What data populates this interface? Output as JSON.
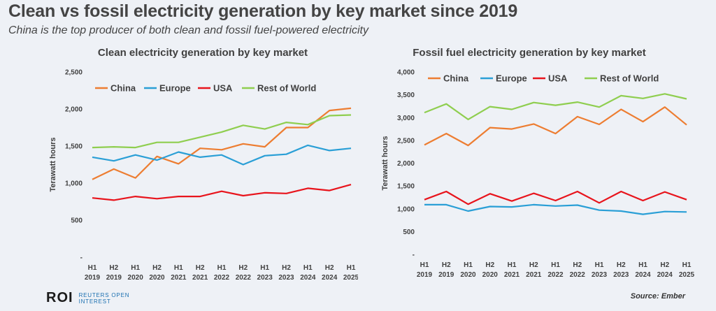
{
  "header": {
    "title": "Clean vs fossil electricity generation by key market since 2019",
    "subtitle": "China is the top producer of both clean and fossil fuel-powered electricity"
  },
  "footer": {
    "logo": "ROI",
    "logo_line1": "REUTERS OPEN",
    "logo_line2": "INTEREST",
    "source": "Source: Ember"
  },
  "chart_data": [
    {
      "type": "line",
      "title": "Clean electricity generation by key market",
      "ylabel": "Terawatt hours",
      "xlabel": "",
      "ylim": [
        0,
        2500
      ],
      "yticks": [
        0,
        500,
        1000,
        1500,
        2000,
        2500
      ],
      "ytick_labels": [
        "-",
        "500",
        "1,000",
        "1,500",
        "2,000",
        "2,500"
      ],
      "categories": [
        [
          "H1",
          "2019"
        ],
        [
          "H2",
          "2019"
        ],
        [
          "H1",
          "2020"
        ],
        [
          "H2",
          "2020"
        ],
        [
          "H1",
          "2021"
        ],
        [
          "H2",
          "2021"
        ],
        [
          "H1",
          "2022"
        ],
        [
          "H2",
          "2022"
        ],
        [
          "H1",
          "2023"
        ],
        [
          "H2",
          "2023"
        ],
        [
          "H1",
          "2024"
        ],
        [
          "H2",
          "2024"
        ],
        [
          "H1",
          "2025"
        ]
      ],
      "series": [
        {
          "name": "China",
          "color": "#ed7d31",
          "values": [
            1050,
            1190,
            1070,
            1360,
            1260,
            1470,
            1450,
            1530,
            1490,
            1750,
            1750,
            1980,
            2010
          ]
        },
        {
          "name": "Europe",
          "color": "#2a9fd6",
          "values": [
            1350,
            1300,
            1380,
            1310,
            1420,
            1350,
            1380,
            1250,
            1370,
            1390,
            1510,
            1440,
            1470
          ]
        },
        {
          "name": "USA",
          "color": "#e8141c",
          "values": [
            800,
            770,
            820,
            790,
            820,
            820,
            890,
            830,
            870,
            860,
            930,
            900,
            980
          ]
        },
        {
          "name": "Rest of World",
          "color": "#8fce4f",
          "values": [
            1480,
            1490,
            1480,
            1550,
            1550,
            1620,
            1690,
            1780,
            1730,
            1820,
            1790,
            1910,
            1920
          ]
        }
      ],
      "legend": "top-left",
      "grid": false
    },
    {
      "type": "line",
      "title": "Fossil fuel electricity generation by key market",
      "ylabel": "Terawatt hours",
      "xlabel": "",
      "ylim": [
        0,
        4000
      ],
      "yticks": [
        0,
        500,
        1000,
        1500,
        2000,
        2500,
        3000,
        3500,
        4000
      ],
      "ytick_labels": [
        "-",
        "500",
        "1,000",
        "1,500",
        "2,000",
        "2,500",
        "3,000",
        "3,500",
        "4,000"
      ],
      "categories": [
        [
          "H1",
          "2019"
        ],
        [
          "H2",
          "2019"
        ],
        [
          "H1",
          "2020"
        ],
        [
          "H2",
          "2020"
        ],
        [
          "H1",
          "2021"
        ],
        [
          "H2",
          "2021"
        ],
        [
          "H1",
          "2022"
        ],
        [
          "H2",
          "2022"
        ],
        [
          "H1",
          "2023"
        ],
        [
          "H2",
          "2023"
        ],
        [
          "H1",
          "2024"
        ],
        [
          "H2",
          "2024"
        ],
        [
          "H1",
          "2025"
        ]
      ],
      "series": [
        {
          "name": "China",
          "color": "#ed7d31",
          "values": [
            2400,
            2650,
            2390,
            2780,
            2750,
            2860,
            2650,
            3020,
            2850,
            3180,
            2910,
            3230,
            2840
          ]
        },
        {
          "name": "Europe",
          "color": "#2a9fd6",
          "values": [
            1090,
            1090,
            950,
            1050,
            1040,
            1090,
            1060,
            1080,
            970,
            950,
            880,
            940,
            930
          ]
        },
        {
          "name": "USA",
          "color": "#e8141c",
          "values": [
            1200,
            1380,
            1100,
            1330,
            1170,
            1340,
            1180,
            1380,
            1130,
            1380,
            1180,
            1370,
            1200
          ]
        },
        {
          "name": "Rest of World",
          "color": "#8fce4f",
          "values": [
            3110,
            3300,
            2960,
            3240,
            3180,
            3330,
            3270,
            3340,
            3230,
            3480,
            3420,
            3520,
            3410
          ]
        }
      ],
      "legend": "top-left",
      "grid": false
    }
  ]
}
